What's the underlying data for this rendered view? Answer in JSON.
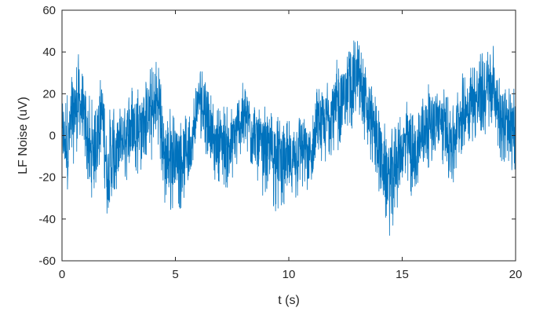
{
  "chart_data": {
    "type": "line",
    "title": "",
    "xlabel": "t (s)",
    "ylabel": "LF Noise (uV)",
    "xlim": [
      0,
      20
    ],
    "ylim": [
      -60,
      60
    ],
    "x_ticks": [
      0,
      5,
      10,
      15,
      20
    ],
    "x_tick_labels": [
      "0",
      "5",
      "10",
      "15",
      "20"
    ],
    "y_ticks": [
      -60,
      -40,
      -20,
      0,
      20,
      40,
      60
    ],
    "y_tick_labels": [
      "-60",
      "-40",
      "-20",
      "0",
      "20",
      "40",
      "60"
    ],
    "grid": false,
    "legend": "none",
    "series": [
      {
        "color": "#0072BD",
        "x": [
          0,
          0.25,
          0.5,
          0.75,
          1,
          1.25,
          1.5,
          1.75,
          2,
          2.25,
          2.5,
          2.75,
          3,
          3.25,
          3.5,
          3.75,
          4,
          4.25,
          4.5,
          4.75,
          5,
          5.25,
          5.5,
          5.75,
          6,
          6.25,
          6.5,
          6.75,
          7,
          7.25,
          7.5,
          7.75,
          8,
          8.25,
          8.5,
          8.75,
          9,
          9.25,
          9.5,
          9.75,
          10,
          10.25,
          10.5,
          10.75,
          11,
          11.25,
          11.5,
          11.75,
          12,
          12.25,
          12.5,
          12.75,
          13,
          13.25,
          13.5,
          13.75,
          14,
          14.25,
          14.5,
          14.75,
          15,
          15.25,
          15.5,
          15.75,
          16,
          16.25,
          16.5,
          16.75,
          17,
          17.25,
          17.5,
          17.75,
          18,
          18.25,
          18.5,
          18.75,
          19,
          19.25,
          19.5,
          19.75,
          20
        ],
        "y": [
          0,
          -6,
          10,
          17,
          6,
          -9,
          0,
          14,
          -18,
          -14,
          -4,
          1,
          3,
          5,
          4,
          12,
          10,
          17,
          -8,
          -8,
          -10,
          -9,
          -6,
          -4,
          18,
          14,
          6,
          -5,
          -2,
          -6,
          -3,
          5,
          8,
          8,
          -1,
          -5,
          -6,
          -8,
          -5,
          -12,
          -14,
          -10,
          -3,
          -7,
          -12,
          8,
          3,
          10,
          12,
          15,
          20,
          25,
          30,
          22,
          10,
          4,
          -6,
          -18,
          -20,
          -12,
          -6,
          -2,
          -11,
          -3,
          4,
          8,
          9,
          6,
          2,
          -2,
          8,
          12,
          15,
          17,
          18,
          20,
          24,
          12,
          5,
          2,
          4
        ],
        "upper": [
          20,
          22,
          35,
          40,
          26,
          18,
          18,
          31,
          10,
          18,
          16,
          22,
          26,
          28,
          25,
          32,
          34,
          40,
          12,
          15,
          12,
          8,
          10,
          16,
          35,
          33,
          24,
          10,
          18,
          14,
          15,
          20,
          26,
          27,
          18,
          14,
          16,
          12,
          10,
          6,
          8,
          8,
          16,
          10,
          6,
          26,
          20,
          32,
          35,
          38,
          40,
          44,
          48,
          40,
          28,
          24,
          14,
          6,
          2,
          10,
          12,
          18,
          10,
          16,
          22,
          26,
          28,
          25,
          20,
          16,
          28,
          32,
          34,
          38,
          40,
          44,
          46,
          34,
          26,
          22,
          24
        ],
        "lower": [
          -22,
          -27,
          -14,
          -4,
          -13,
          -31,
          -26,
          -8,
          -41,
          -36,
          -28,
          -24,
          -20,
          -20,
          -18,
          -10,
          -14,
          -4,
          -38,
          -40,
          -34,
          -36,
          -26,
          -22,
          2,
          -6,
          -14,
          -22,
          -22,
          -27,
          -24,
          -16,
          -10,
          -14,
          -22,
          -28,
          -30,
          -34,
          -38,
          -38,
          -36,
          -38,
          -28,
          -30,
          -34,
          -16,
          -22,
          -12,
          -12,
          -10,
          -2,
          2,
          8,
          0,
          -10,
          -16,
          -30,
          -42,
          -50,
          -38,
          -28,
          -28,
          -34,
          -26,
          -18,
          -14,
          -12,
          -14,
          -20,
          -28,
          -14,
          -6,
          -2,
          -4,
          -2,
          0,
          4,
          -8,
          -16,
          -18,
          -16
        ]
      }
    ]
  }
}
